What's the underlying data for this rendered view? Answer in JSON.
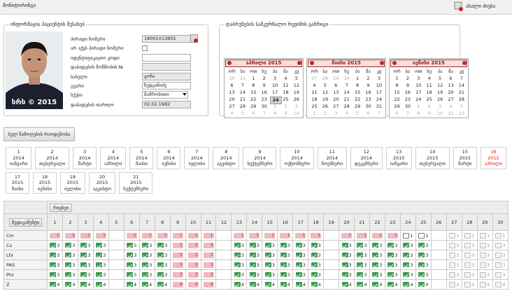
{
  "header": {
    "title": "მონიტორინგი",
    "new_search": "ახალი ძიება"
  },
  "patient": {
    "legend": "ინფორმაცია პაციენტის შესახებ",
    "photo_caption": "სრს © 2015",
    "fields": [
      {
        "label": "პირადი ნომერი",
        "value": "18001013855",
        "type": "text",
        "readonly": true,
        "search_icon": true
      },
      {
        "label": "არ აქვს პირადი ნომერი",
        "type": "checkbox"
      },
      {
        "label": "იდენტიფიკაციო კოდი",
        "type": "text",
        "readonly": false
      },
      {
        "label": "დაბადების მოწმობის №",
        "type": "text",
        "readonly": true
      },
      {
        "label": "სახელი",
        "value": "გოჩა",
        "type": "text",
        "readonly": true
      },
      {
        "label": "გვარი",
        "value": "ზედგინიძე",
        "type": "text",
        "readonly": false
      },
      {
        "label": "სქესი",
        "value": "მამრობითი",
        "type": "select"
      },
      {
        "label": "დაბადების თარიღი",
        "value": "02.02.1982",
        "type": "text",
        "readonly": true
      }
    ]
  },
  "schedule": {
    "legend": "დაბრუნების სამკურნალო რეჟიმის განრიგი",
    "weekdays": [
      "ორ",
      "სა",
      "ოთ",
      "ხუ",
      "პა",
      "შა",
      "კვ"
    ],
    "calendars": [
      {
        "title": "აპრილი 2015",
        "highlight": 24,
        "weeks": [
          [
            30,
            31,
            1,
            2,
            3,
            4,
            5
          ],
          [
            6,
            7,
            8,
            9,
            10,
            11,
            12
          ],
          [
            13,
            14,
            15,
            16,
            17,
            18,
            19
          ],
          [
            20,
            21,
            22,
            23,
            24,
            25,
            26
          ],
          [
            27,
            28,
            29,
            30,
            1,
            2,
            3
          ],
          [
            4,
            5,
            6,
            7,
            8,
            9,
            10
          ]
        ]
      },
      {
        "title": "მაისი 2015",
        "weeks": [
          [
            27,
            28,
            29,
            30,
            1,
            2,
            3
          ],
          [
            4,
            5,
            6,
            7,
            8,
            9,
            10
          ],
          [
            11,
            12,
            13,
            14,
            15,
            16,
            17
          ],
          [
            18,
            19,
            20,
            21,
            22,
            23,
            24
          ],
          [
            25,
            26,
            27,
            28,
            29,
            30,
            31
          ],
          [
            1,
            2,
            3,
            4,
            5,
            6,
            7
          ]
        ]
      },
      {
        "title": "ივნისი 2015",
        "weeks": [
          [
            1,
            2,
            3,
            4,
            5,
            6,
            7
          ],
          [
            8,
            9,
            10,
            11,
            12,
            13,
            14
          ],
          [
            15,
            16,
            17,
            18,
            19,
            20,
            21
          ],
          [
            22,
            23,
            24,
            25,
            26,
            27,
            28
          ],
          [
            29,
            30,
            1,
            2,
            3,
            4,
            5
          ],
          [
            6,
            7,
            8,
            9,
            10,
            11,
            12
          ]
        ]
      }
    ]
  },
  "totals_button": "სულ წამოღების რაოდენობა",
  "months": {
    "rows": [
      [
        {
          "number": 1,
          "year": 2014,
          "month": "იანვარი"
        },
        {
          "number": 2,
          "year": 2014,
          "month": "თებერვალი"
        },
        {
          "number": 3,
          "year": 2014,
          "month": "მარტი"
        },
        {
          "number": 4,
          "year": 2014,
          "month": "აპრილი"
        },
        {
          "number": 5,
          "year": 2014,
          "month": "მაისი"
        },
        {
          "number": 6,
          "year": 2014,
          "month": "ივნისი"
        },
        {
          "number": 7,
          "year": 2014,
          "month": "ივლისი"
        },
        {
          "number": 8,
          "year": 2014,
          "month": "აგვისტო"
        },
        {
          "number": 9,
          "year": 2014,
          "month": "სექტემბერი"
        },
        {
          "number": 10,
          "year": 2014,
          "month": "ოქტომბერი"
        },
        {
          "number": 11,
          "year": 2014,
          "month": "ნოემბერი"
        },
        {
          "number": 12,
          "year": 2014,
          "month": "დეკემბერი"
        },
        {
          "number": 13,
          "year": 2015,
          "month": "იანვარი"
        },
        {
          "number": 14,
          "year": 2015,
          "month": "თებერვალი"
        },
        {
          "number": 15,
          "year": 2015,
          "month": "მარტი"
        },
        {
          "number": 16,
          "year": 2015,
          "month": "აპრილი",
          "active": true
        }
      ],
      [
        {
          "number": 17,
          "year": 2015,
          "month": "მაისი"
        },
        {
          "number": 18,
          "year": 2015,
          "month": "ივნისი"
        },
        {
          "number": 19,
          "year": 2015,
          "month": "ივლისი"
        },
        {
          "number": 20,
          "year": 2015,
          "month": "აგვისტო"
        },
        {
          "number": 21,
          "year": 2015,
          "month": "სექტემბერი"
        }
      ]
    ]
  },
  "grid": {
    "date_button": "რიცხვი",
    "drug_button": "მედიკამენტი",
    "days": [
      1,
      2,
      3,
      4,
      5,
      6,
      7,
      8,
      9,
      10,
      11,
      12,
      13,
      14,
      15,
      16,
      17,
      18,
      19,
      20,
      21,
      22,
      23,
      24,
      25,
      26,
      27,
      28,
      29,
      30
    ],
    "rows": [
      {
        "drug": "Cm",
        "values": [
          1,
          1,
          1,
          1,
          null,
          1,
          1,
          1,
          1,
          1,
          1,
          null,
          1,
          1,
          1,
          1,
          1,
          1,
          null,
          1,
          1,
          1,
          1,
          1,
          1,
          null,
          1,
          1,
          1,
          1
        ],
        "states": [
          "missed",
          "missed",
          "missed",
          "missed",
          null,
          "missed",
          "missed",
          "missed",
          "missed",
          "missed",
          "missed",
          null,
          "missed",
          "missed",
          "missed",
          "missed",
          "missed",
          "missed",
          null,
          "missed",
          "missed",
          "missed",
          "missed",
          "open",
          "open",
          null,
          "planned",
          "planned",
          "planned",
          "planned"
        ]
      },
      {
        "drug": "Cs",
        "values": [
          3,
          3,
          3,
          3,
          null,
          3,
          3,
          3,
          3,
          3,
          3,
          null,
          3,
          3,
          3,
          3,
          3,
          3,
          null,
          3,
          3,
          3,
          3,
          3,
          3,
          null,
          3,
          3,
          3,
          3
        ],
        "states": [
          "taken",
          "taken",
          "taken",
          "taken",
          null,
          "taken",
          "taken",
          "taken",
          "missed",
          "missed",
          "missed",
          null,
          "taken",
          "taken",
          "taken",
          "taken",
          "taken",
          "taken",
          null,
          "taken",
          "taken",
          "taken",
          "taken",
          "taken",
          "taken",
          null,
          "planned",
          "planned",
          "planned",
          "planned"
        ]
      },
      {
        "drug": "Lfx",
        "values": [
          3,
          3,
          3,
          3,
          null,
          3,
          3,
          3,
          3,
          3,
          3,
          null,
          3,
          3,
          3,
          3,
          3,
          3,
          null,
          3,
          3,
          3,
          3,
          3,
          3,
          null,
          3,
          3,
          3,
          3
        ],
        "states": [
          "taken",
          "taken",
          "taken",
          "taken",
          null,
          "taken",
          "taken",
          "taken",
          "missed",
          "missed",
          "missed",
          null,
          "taken",
          "taken",
          "taken",
          "taken",
          "taken",
          "taken",
          null,
          "taken",
          "taken",
          "taken",
          "taken",
          "taken",
          "taken",
          null,
          "planned",
          "planned",
          "planned",
          "planned"
        ]
      },
      {
        "drug": "PAS",
        "values": [
          3,
          3,
          3,
          3,
          null,
          3,
          3,
          3,
          3,
          3,
          3,
          null,
          3,
          3,
          3,
          3,
          3,
          3,
          null,
          3,
          3,
          3,
          3,
          3,
          3,
          null,
          3,
          3,
          3,
          3
        ],
        "states": [
          "taken",
          "taken",
          "taken",
          "taken",
          null,
          "taken",
          "taken",
          "taken",
          "missed",
          "missed",
          "missed",
          null,
          "taken",
          "taken",
          "taken",
          "taken",
          "taken",
          "taken",
          null,
          "taken",
          "taken",
          "taken",
          "taken",
          "taken",
          "taken",
          null,
          "planned",
          "planned",
          "planned",
          "planned"
        ]
      },
      {
        "drug": "Pto",
        "values": [
          3,
          3,
          3,
          3,
          null,
          3,
          3,
          3,
          3,
          3,
          3,
          null,
          3,
          3,
          3,
          3,
          3,
          3,
          null,
          3,
          3,
          3,
          3,
          3,
          3,
          null,
          3,
          3,
          3,
          3
        ],
        "states": [
          "taken",
          "taken",
          "taken",
          "taken",
          null,
          "taken",
          "taken",
          "taken",
          "missed",
          "missed",
          "missed",
          null,
          "taken",
          "taken",
          "taken",
          "taken",
          "taken",
          "taken",
          null,
          "taken",
          "taken",
          "taken",
          "taken",
          "taken",
          "taken",
          null,
          "planned",
          "planned",
          "planned",
          "planned"
        ]
      },
      {
        "drug": "Z",
        "values": [
          4,
          4,
          4,
          4,
          null,
          4,
          4,
          4,
          4,
          4,
          4,
          null,
          4,
          4,
          4,
          4,
          4,
          4,
          null,
          4,
          4,
          4,
          4,
          4,
          4,
          null,
          4,
          4,
          4,
          4
        ],
        "states": [
          "taken",
          "taken",
          "taken",
          "taken",
          null,
          "taken",
          "taken",
          "taken",
          "missed",
          "missed",
          "missed",
          null,
          "taken",
          "taken",
          "taken",
          "taken",
          "taken",
          "taken",
          null,
          "taken",
          "taken",
          "taken",
          "taken",
          "taken",
          "taken",
          null,
          "planned",
          "planned",
          "planned",
          "planned"
        ]
      }
    ]
  }
}
